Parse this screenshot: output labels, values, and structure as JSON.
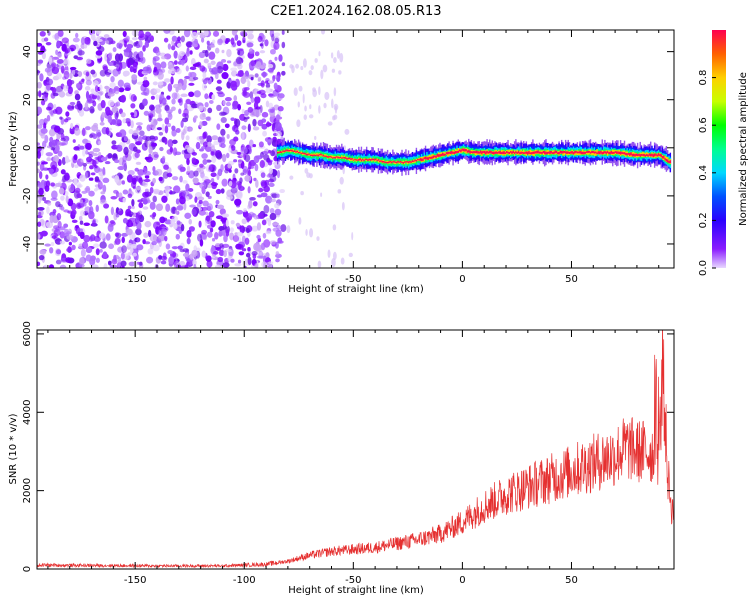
{
  "title": "C2E1.2024.162.08.05.R13",
  "colors": {
    "snr_line": "#e53030",
    "heat_noise": "#8a1cff",
    "heat_low": "#c9a2f5",
    "heat_ridge": "#ff0a50"
  },
  "chart_data": [
    {
      "type": "heatmap",
      "xlabel": "Height of straight line (km)",
      "ylabel": "Frequency (Hz)",
      "xlim": [
        -195,
        97
      ],
      "ylim": [
        -50,
        49
      ],
      "x_ticks": [
        -150,
        -100,
        -50,
        0,
        50
      ],
      "y_ticks": [
        -40,
        -20,
        0,
        20,
        40
      ],
      "colorbar": {
        "label": "Normalized spectral amplitude",
        "range": [
          0,
          1
        ],
        "ticks": [
          0.0,
          0.2,
          0.4,
          0.6,
          0.8
        ],
        "tick_labels": [
          "0.0",
          "0.2",
          "0.4",
          "0.6",
          "0.8"
        ],
        "colormap": [
          "#8a1cff",
          "#3a00ff",
          "#0030ff",
          "#00d8ff",
          "#00ff90",
          "#00ff00",
          "#c8ff00",
          "#ffd000",
          "#ff6000",
          "#ff0050"
        ]
      },
      "noise_region_x": [
        -195,
        -82
      ],
      "ridge": {
        "x": [
          -85,
          -80,
          -75,
          -70,
          -65,
          -60,
          -55,
          -50,
          -45,
          -40,
          -35,
          -30,
          -25,
          -20,
          -15,
          -10,
          -5,
          0,
          5,
          10,
          20,
          30,
          40,
          50,
          60,
          70,
          80,
          90,
          95
        ],
        "y": [
          -2,
          -1,
          -2,
          -3,
          -3,
          -4,
          -4,
          -5,
          -5,
          -5,
          -6,
          -6,
          -6,
          -5,
          -4,
          -3,
          -2,
          -1,
          -2,
          -2,
          -2,
          -2,
          -2,
          -2,
          -2,
          -2,
          -3,
          -3,
          -6
        ]
      }
    },
    {
      "type": "line",
      "xlabel": "Height of straight line (km)",
      "ylabel": "SNR (10 * v/v)",
      "xlim": [
        -195,
        97
      ],
      "ylim": [
        0,
        6100
      ],
      "x_ticks": [
        -150,
        -100,
        -50,
        0,
        50
      ],
      "y_ticks": [
        0,
        2000,
        4000,
        6000
      ],
      "series": [
        {
          "x": [
            -195,
            -170,
            -140,
            -110,
            -90,
            -80,
            -70,
            -60,
            -50,
            -40,
            -30,
            -20,
            -10,
            0,
            10,
            20,
            30,
            40,
            50,
            60,
            70,
            75,
            80,
            85,
            90,
            92,
            94,
            96
          ],
          "values": [
            100,
            90,
            80,
            80,
            120,
            200,
            350,
            450,
            500,
            550,
            650,
            750,
            900,
            1200,
            1600,
            1900,
            2100,
            2300,
            2500,
            2700,
            2900,
            3100,
            3000,
            3000,
            2900,
            5000,
            2500,
            1500
          ]
        }
      ]
    }
  ]
}
